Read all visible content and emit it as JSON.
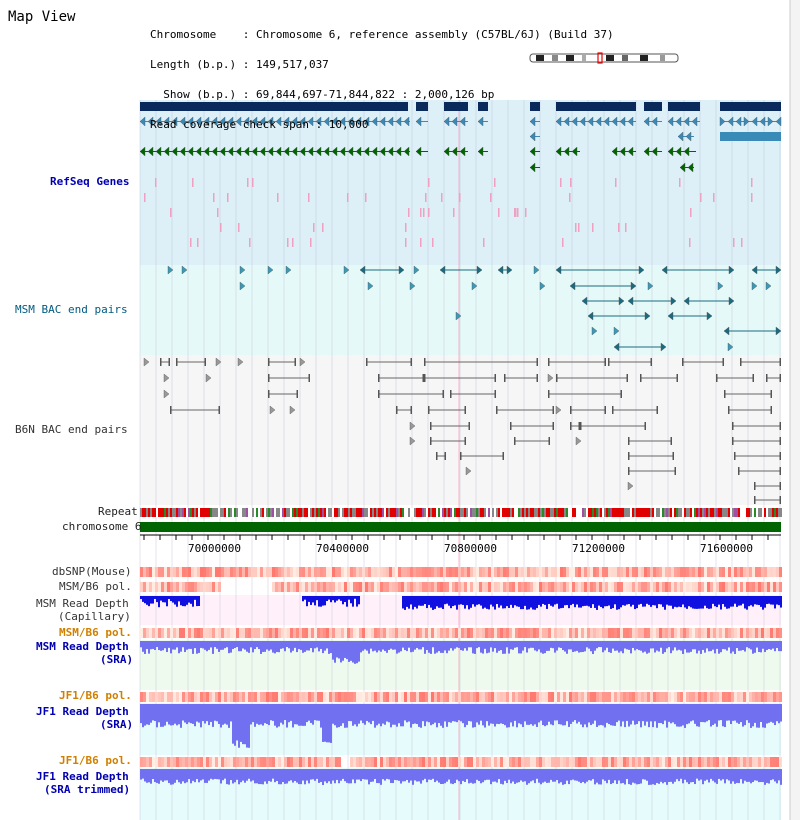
{
  "app": {
    "title": "Map View"
  },
  "info": {
    "line1": "Chromosome    : Chromosome 6, reference assembly (C57BL/6J) (Build 37)",
    "line2": "Length (b.p.) : 149,517,037",
    "line3": "  Show (b.p.) : 69,844,697-71,844,822 : 2,000,126 bp",
    "line4": "Read coverage check span : 10,000"
  },
  "tracks": {
    "refseq": "RefSeq Genes",
    "msm_bac": "MSM BAC end pairs",
    "b6n_bac": "B6N BAC end pairs",
    "repeat": "Repeat",
    "chromosome": "chromosome 6",
    "dbsnp": "dbSNP(Mouse)",
    "msm_b6_pol_1": "MSM/B6 pol.",
    "msm_depth_cap_1": "MSM Read Depth",
    "msm_depth_cap_2": "(Capillary)",
    "msm_b6_pol_2": "MSM/B6 pol.",
    "msm_depth_sra_1": "MSM Read Depth",
    "msm_depth_sra_2": "(SRA)",
    "jf1_b6_pol_1": "JF1/B6 pol.",
    "jf1_depth_sra_1": "JF1 Read Depth",
    "jf1_depth_sra_2": "(SRA)",
    "jf1_b6_pol_2": "JF1/B6 pol.",
    "jf1_depth_trim_1": "JF1 Read Depth",
    "jf1_depth_trim_2": "(SRA trimmed)"
  },
  "axis": {
    "ticks": [
      "70000000",
      "70400000",
      "70800000",
      "71200000",
      "71600000"
    ]
  },
  "colors": {
    "refseq_bg": "#ddf0f8",
    "bac_bg": "#e6f9f9",
    "gene_navy": "#0a2a5c",
    "gene_steel": "#3a8ab8",
    "gene_green": "#006400",
    "bac_teal": "#1a6a80",
    "chromosome_bar": "#006400",
    "depth_blue": "#1010e0",
    "depth_light": "#7070f0"
  }
}
